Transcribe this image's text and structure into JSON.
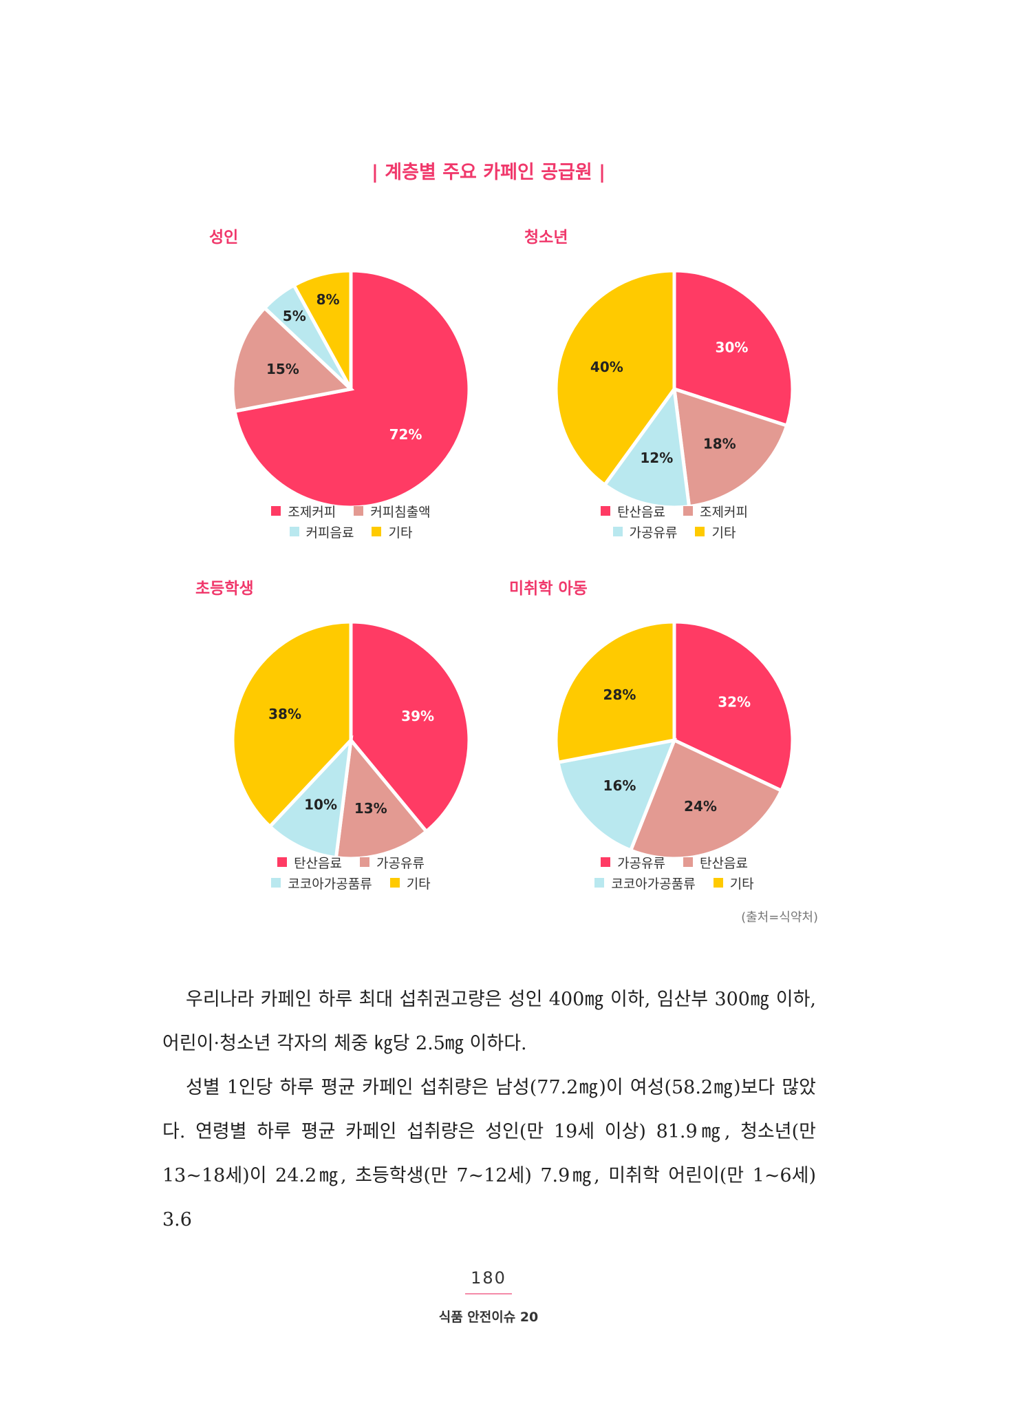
{
  "figure_title": "| 계층별 주요 카페인 공급원 |",
  "colors": {
    "pink": "#ff3b64",
    "salmon": "#e39a92",
    "light_blue": "#b9e8ef",
    "yellow": "#ffca00"
  },
  "chart_data": [
    {
      "type": "pie",
      "title": "성인",
      "slices": [
        {
          "label": "조제커피",
          "value": 72,
          "text": "72%",
          "color": "#ff3b64"
        },
        {
          "label": "커피침출액",
          "value": 15,
          "text": "15%",
          "color": "#e39a92"
        },
        {
          "label": "커피음료",
          "value": 5,
          "text": "5%",
          "color": "#b9e8ef"
        },
        {
          "label": "기타",
          "value": 8,
          "text": "8%",
          "color": "#ffca00"
        }
      ]
    },
    {
      "type": "pie",
      "title": "청소년",
      "slices": [
        {
          "label": "탄산음료",
          "value": 30,
          "text": "30%",
          "color": "#ff3b64"
        },
        {
          "label": "조제커피",
          "value": 18,
          "text": "18%",
          "color": "#e39a92"
        },
        {
          "label": "가공유류",
          "value": 12,
          "text": "12%",
          "color": "#b9e8ef"
        },
        {
          "label": "기타",
          "value": 40,
          "text": "40%",
          "color": "#ffca00"
        }
      ]
    },
    {
      "type": "pie",
      "title": "초등학생",
      "slices": [
        {
          "label": "탄산음료",
          "value": 39,
          "text": "39%",
          "color": "#ff3b64"
        },
        {
          "label": "가공유류",
          "value": 13,
          "text": "13%",
          "color": "#e39a92"
        },
        {
          "label": "코코아가공품류",
          "value": 10,
          "text": "10%",
          "color": "#b9e8ef"
        },
        {
          "label": "기타",
          "value": 38,
          "text": "38%",
          "color": "#ffca00"
        }
      ]
    },
    {
      "type": "pie",
      "title": "미취학 아동",
      "slices": [
        {
          "label": "가공유류",
          "value": 32,
          "text": "32%",
          "color": "#ff3b64"
        },
        {
          "label": "탄산음료",
          "value": 24,
          "text": "24%",
          "color": "#e39a92"
        },
        {
          "label": "코코아가공품류",
          "value": 16,
          "text": "16%",
          "color": "#b9e8ef"
        },
        {
          "label": "기타",
          "value": 28,
          "text": "28%",
          "color": "#ffca00"
        }
      ]
    }
  ],
  "source": "(출처=식약처)",
  "paragraphs": [
    "우리나라 카페인 하루 최대 섭취권고량은 성인 400㎎ 이하, 임산부 300㎎ 이하, 어린이·청소년 각자의 체중 ㎏당 2.5㎎ 이하다.",
    "성별 1인당 하루 평균 카페인 섭취량은 남성(77.2㎎)이 여성(58.2㎎)보다 많았다. 연령별 하루 평균 카페인 섭취량은 성인(만 19세 이상) 81.9㎎, 청소년(만 13~18세)이 24.2㎎, 초등학생(만 7~12세) 7.9㎎, 미취학 어린이(만 1~6세) 3.6"
  ],
  "page_number": "180",
  "footer": "식품 안전이슈 20"
}
